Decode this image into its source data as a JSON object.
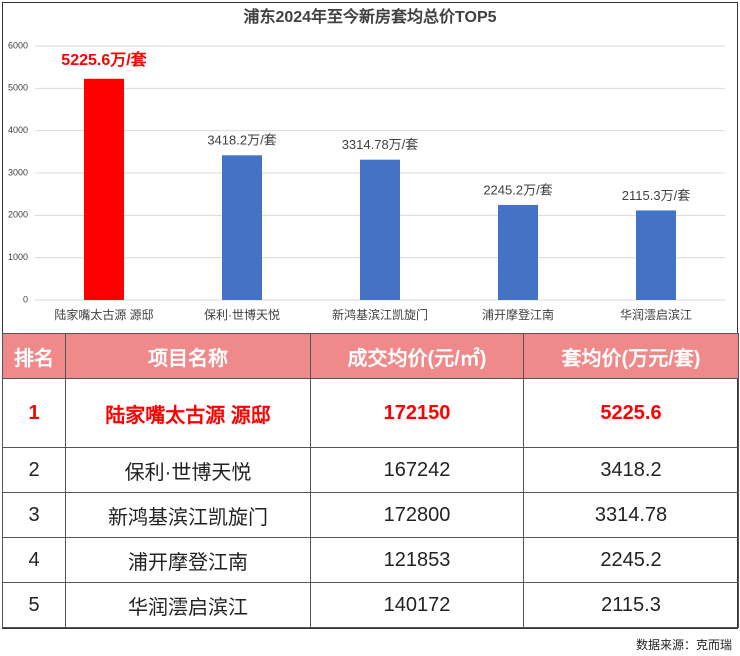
{
  "chart_data": {
    "type": "bar",
    "title": "浦东2024年至今新房套均总价TOP5",
    "categories": [
      "陆家嘴太古源 源邸",
      "保利·世博天悦",
      "新鸿基滨江凯旋门",
      "浦开摩登江南",
      "华润澐启滨江"
    ],
    "values": [
      5225.6,
      3418.2,
      3314.78,
      2245.2,
      2115.3
    ],
    "value_labels": [
      "5225.6万/套",
      "3418.2万/套",
      "3314.78万/套",
      "2245.2万/套",
      "2115.3万/套"
    ],
    "colors": [
      "#ff0000",
      "#4472c4",
      "#4472c4",
      "#4472c4",
      "#4472c4"
    ],
    "ylim": [
      0,
      6000
    ],
    "yticks": [
      0,
      1000,
      2000,
      3000,
      4000,
      5000,
      6000
    ],
    "grid": true
  },
  "table": {
    "header": [
      "排名",
      "项目名称",
      "成交均价(元/㎡)",
      "套均价(万元/套)"
    ],
    "rows": [
      [
        1,
        "陆家嘴太古源 源邸",
        172150,
        5225.6
      ],
      [
        2,
        "保利·世博天悦",
        167242,
        3418.2
      ],
      [
        3,
        "新鸿基滨江凯旋门",
        172800,
        3314.78
      ],
      [
        4,
        "浦开摩登江南",
        121853,
        2245.2
      ],
      [
        5,
        "华润澐启滨江",
        140172,
        2115.3
      ]
    ]
  },
  "source": "数据来源：克而瑞"
}
